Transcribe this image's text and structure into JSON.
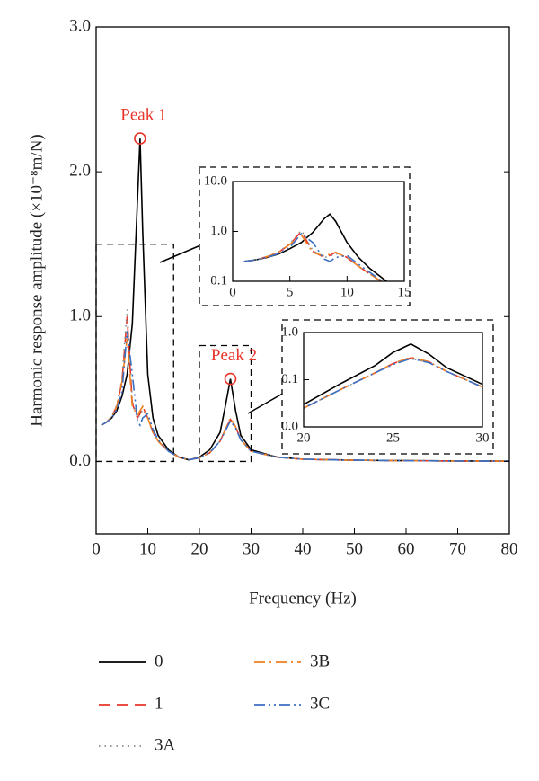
{
  "chart_data": [
    {
      "type": "line",
      "xlabel": "Frequency (Hz)",
      "ylabel": "Harmonic response amplitude (×10⁻⁸m/N)",
      "x": [
        1,
        2,
        3,
        4,
        5,
        6,
        7,
        8,
        8.5,
        9,
        10,
        11,
        12,
        14,
        16,
        18,
        20,
        22,
        24,
        25,
        26,
        27,
        28,
        30,
        35,
        40,
        50,
        60,
        70,
        80
      ],
      "series": [
        {
          "name": "0",
          "color": "#000000",
          "linestyle": "solid",
          "values": [
            0.25,
            0.27,
            0.3,
            0.35,
            0.45,
            0.6,
            0.95,
            1.8,
            2.23,
            1.6,
            0.6,
            0.3,
            0.18,
            0.08,
            0.03,
            0.01,
            0.03,
            0.08,
            0.2,
            0.38,
            0.57,
            0.35,
            0.18,
            0.08,
            0.03,
            0.015,
            0.008,
            0.005,
            0.003,
            0.002
          ]
        },
        {
          "name": "1",
          "color": "#e8352a",
          "linestyle": "dashed",
          "values": [
            0.25,
            0.27,
            0.31,
            0.38,
            0.55,
            1.0,
            0.4,
            0.3,
            0.33,
            0.38,
            0.3,
            0.2,
            0.14,
            0.07,
            0.03,
            0.012,
            0.025,
            0.06,
            0.14,
            0.22,
            0.29,
            0.24,
            0.15,
            0.07,
            0.03,
            0.015,
            0.008,
            0.005,
            0.003,
            0.002
          ]
        },
        {
          "name": "3A",
          "color": "#8a8a8a",
          "linestyle": "dotted",
          "values": [
            0.25,
            0.27,
            0.31,
            0.39,
            0.57,
            1.05,
            0.42,
            0.3,
            0.32,
            0.36,
            0.3,
            0.2,
            0.14,
            0.07,
            0.03,
            0.012,
            0.025,
            0.06,
            0.14,
            0.22,
            0.28,
            0.23,
            0.15,
            0.07,
            0.03,
            0.015,
            0.008,
            0.005,
            0.003,
            0.002
          ]
        },
        {
          "name": "3B",
          "color": "#f07f1e",
          "linestyle": "dashdot",
          "values": [
            0.25,
            0.27,
            0.31,
            0.38,
            0.55,
            0.85,
            0.38,
            0.32,
            0.35,
            0.38,
            0.3,
            0.2,
            0.14,
            0.07,
            0.03,
            0.012,
            0.025,
            0.06,
            0.14,
            0.22,
            0.3,
            0.24,
            0.15,
            0.07,
            0.03,
            0.015,
            0.008,
            0.005,
            0.003,
            0.002
          ]
        },
        {
          "name": "3C",
          "color": "#3a6fc4",
          "linestyle": "dashdotdot",
          "values": [
            0.25,
            0.27,
            0.3,
            0.36,
            0.48,
            0.9,
            0.6,
            0.28,
            0.25,
            0.3,
            0.33,
            0.22,
            0.15,
            0.07,
            0.03,
            0.012,
            0.025,
            0.06,
            0.14,
            0.21,
            0.28,
            0.23,
            0.15,
            0.07,
            0.03,
            0.015,
            0.008,
            0.005,
            0.003,
            0.002
          ]
        }
      ],
      "xlim": [
        0,
        80
      ],
      "xticks": [
        0,
        10,
        20,
        30,
        40,
        50,
        60,
        70,
        80
      ],
      "ylim": [
        -0.5,
        3.0
      ],
      "yticks": [
        {
          "value": 0,
          "label": "0.0"
        },
        {
          "value": 1,
          "label": "1.0"
        },
        {
          "value": 2,
          "label": "2.0"
        },
        {
          "value": 3,
          "label": "3.0"
        }
      ],
      "annotations": [
        {
          "text": "Peak 1",
          "x": 8.5,
          "y": 2.23
        },
        {
          "text": "Peak 2",
          "x": 26,
          "y": 0.57
        }
      ]
    },
    {
      "type": "line",
      "log_y": true,
      "xlim": [
        0,
        15
      ],
      "xticks": [
        0,
        5,
        10,
        15
      ],
      "ylim": [
        0.1,
        10
      ],
      "yticks": [
        {
          "value": 0.1,
          "label": "0.1"
        },
        {
          "value": 1,
          "label": "1.0"
        },
        {
          "value": 10,
          "label": "10.0"
        }
      ],
      "zoom_ylim": [
        0,
        1.5
      ]
    },
    {
      "type": "line",
      "log_y": true,
      "xlim": [
        20,
        30
      ],
      "xticks": [
        20,
        25,
        30
      ],
      "ylim": [
        0.01,
        1
      ],
      "yticks": [
        {
          "value": 0.01,
          "label": "0.0"
        },
        {
          "value": 0.1,
          "label": "0.1"
        },
        {
          "value": 1,
          "label": "1.0"
        }
      ],
      "zoom_ylim": [
        0,
        0.8
      ]
    }
  ]
}
